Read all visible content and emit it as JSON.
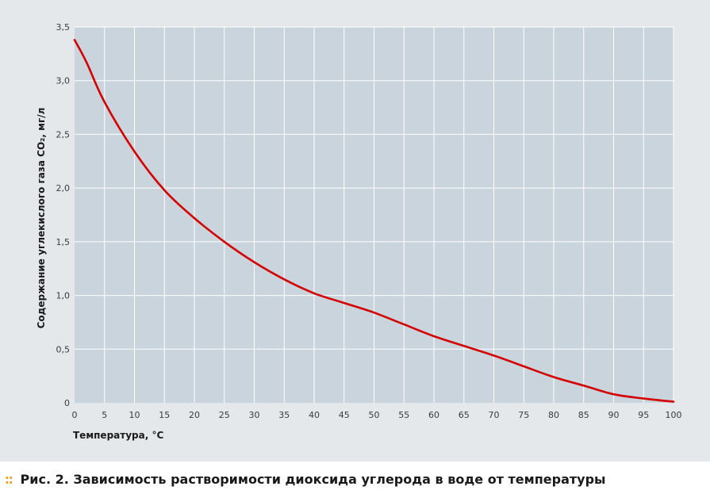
{
  "chart_data": {
    "type": "line",
    "x": [
      0,
      2,
      5,
      10,
      15,
      20,
      25,
      30,
      35,
      40,
      45,
      50,
      55,
      60,
      65,
      70,
      75,
      80,
      85,
      90,
      95,
      100
    ],
    "series": [
      {
        "values": [
          3.38,
          3.17,
          2.8,
          2.34,
          1.98,
          1.72,
          1.5,
          1.31,
          1.15,
          1.02,
          0.93,
          0.84,
          0.73,
          0.62,
          0.53,
          0.44,
          0.34,
          0.24,
          0.16,
          0.08,
          0.04,
          0.01
        ],
        "color": "#d40000"
      }
    ],
    "xlabel": "Температура, °C",
    "ylabel": "Содержание углекислого газа CO₂, мг/л",
    "xlim": [
      0,
      100
    ],
    "ylim": [
      0,
      3.5
    ],
    "xticks": [
      0,
      5,
      10,
      15,
      20,
      25,
      30,
      35,
      40,
      45,
      50,
      55,
      60,
      65,
      70,
      75,
      80,
      85,
      90,
      95,
      100
    ],
    "xtick_labels": [
      "0",
      "5",
      "10",
      "15",
      "20",
      "25",
      "30",
      "35",
      "40",
      "45",
      "50",
      "55",
      "60",
      "65",
      "70",
      "75",
      "80",
      "85",
      "90",
      "95",
      "100"
    ],
    "yticks": [
      0,
      0.5,
      1.0,
      1.5,
      2.0,
      2.5,
      3.0,
      3.5
    ],
    "ytick_labels": [
      "0",
      "0,5",
      "1,0",
      "1,5",
      "2,0",
      "2,5",
      "3,0",
      "3,5"
    ],
    "grid": true,
    "legend": "none"
  },
  "colors": {
    "panel_background": "#e4e8ea",
    "plot_background": "#c9d4dc",
    "grid": "#ffffff",
    "line": "#d40000",
    "caption_marker": "#f0a020"
  },
  "caption": {
    "marker": "::",
    "text": "Рис. 2. Зависимость растворимости диоксида углерода в воде от температуры"
  }
}
